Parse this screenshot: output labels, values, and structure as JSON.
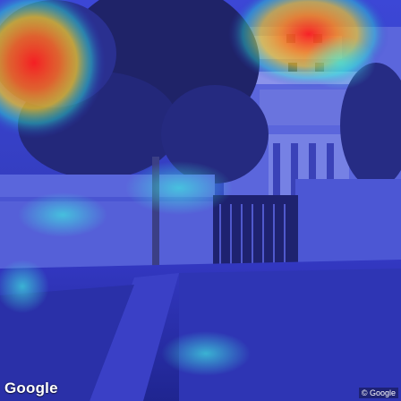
{
  "scene": {
    "description_kind": "street-view-with-attention-heatmap",
    "heatmap_colors": {
      "hot": "#ff1e1e",
      "warm": "#ffd21e",
      "mid": "#29e6d2",
      "cool": "#2f38c8"
    }
  },
  "overlay": {
    "logo_text": "Google",
    "copyright_text": "© Google"
  }
}
